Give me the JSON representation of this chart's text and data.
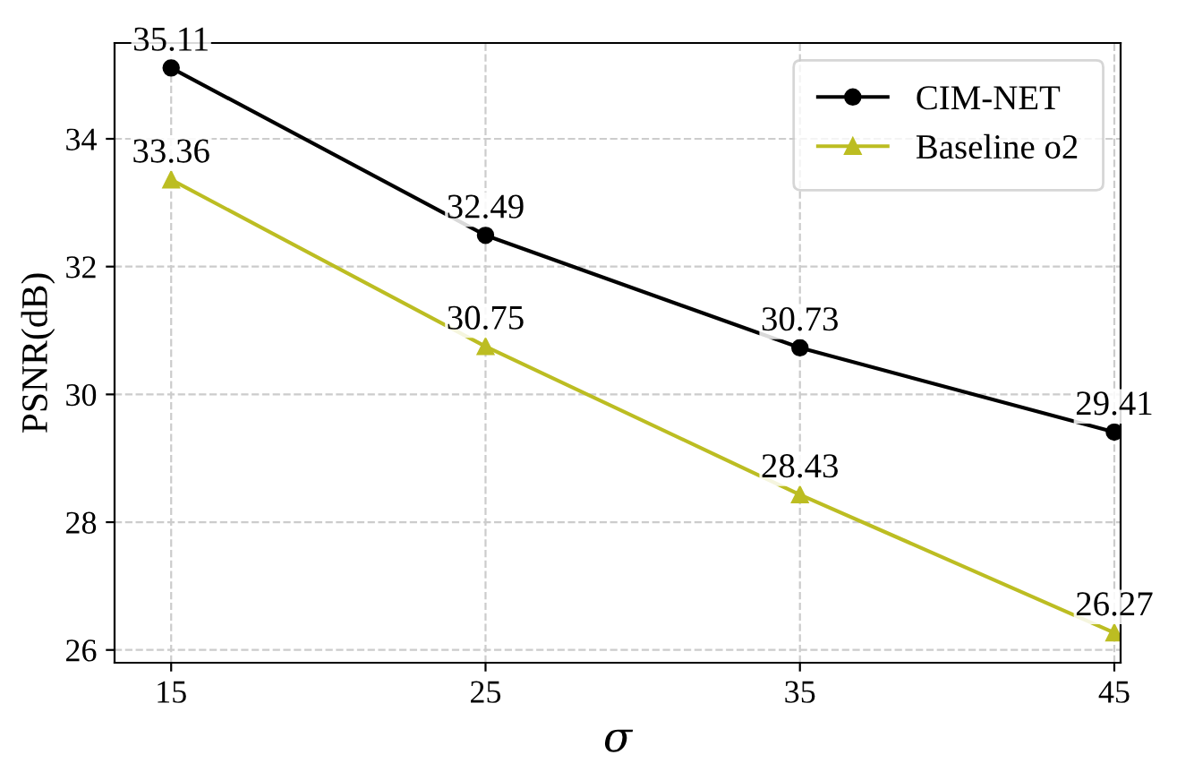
{
  "chart_data": {
    "type": "line",
    "xlabel": "σ",
    "ylabel": "PSNR(dB)",
    "x": [
      15,
      25,
      35,
      45
    ],
    "series": [
      {
        "name": "CIM-NET",
        "color": "#000000",
        "values": [
          35.11,
          32.49,
          30.73,
          29.41
        ],
        "marker": "circle"
      },
      {
        "name": "Baseline o2",
        "color": "#bcbd22",
        "values": [
          33.36,
          30.75,
          28.43,
          26.27
        ],
        "marker": "triangle"
      }
    ],
    "xlim": [
      13.2,
      45.2
    ],
    "ylim": [
      25.8,
      35.5
    ],
    "xticks": [
      15,
      25,
      35,
      45
    ],
    "yticks": [
      26,
      28,
      30,
      32,
      34
    ],
    "grid": true,
    "legend": "top right",
    "data_labels": true,
    "line_style": "solid"
  }
}
